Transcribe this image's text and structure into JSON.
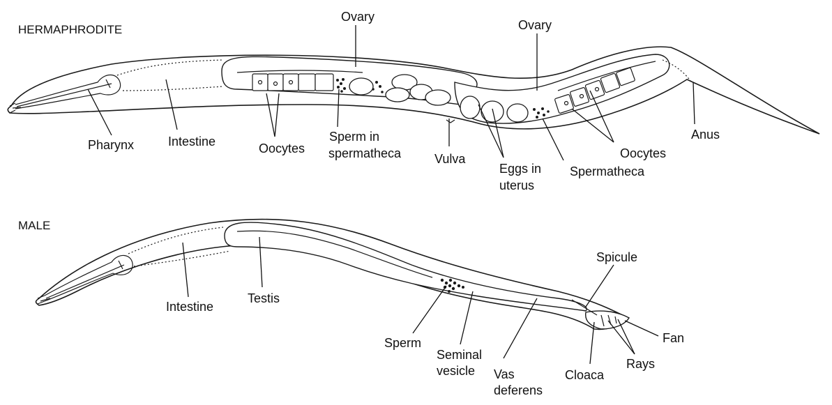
{
  "hermaphrodite": {
    "title": "HERMAPHRODITE",
    "labels": {
      "ovary_left": "Ovary",
      "ovary_right": "Ovary",
      "pharynx": "Pharynx",
      "intestine": "Intestine",
      "oocytes_left": "Oocytes",
      "sperm_in_line1": "Sperm in",
      "sperm_in_line2": "spermatheca",
      "vulva": "Vulva",
      "eggs_line1": "Eggs in",
      "eggs_line2": "uterus",
      "spermatheca": "Spermatheca",
      "oocytes_right": "Oocytes",
      "anus": "Anus"
    }
  },
  "male": {
    "title": "MALE",
    "labels": {
      "intestine": "Intestine",
      "testis": "Testis",
      "sperm": "Sperm",
      "seminal_line1": "Seminal",
      "seminal_line2": "vesicle",
      "vas_line1": "Vas",
      "vas_line2": "deferens",
      "spicule": "Spicule",
      "cloaca": "Cloaca",
      "rays": "Rays",
      "fan": "Fan"
    }
  }
}
